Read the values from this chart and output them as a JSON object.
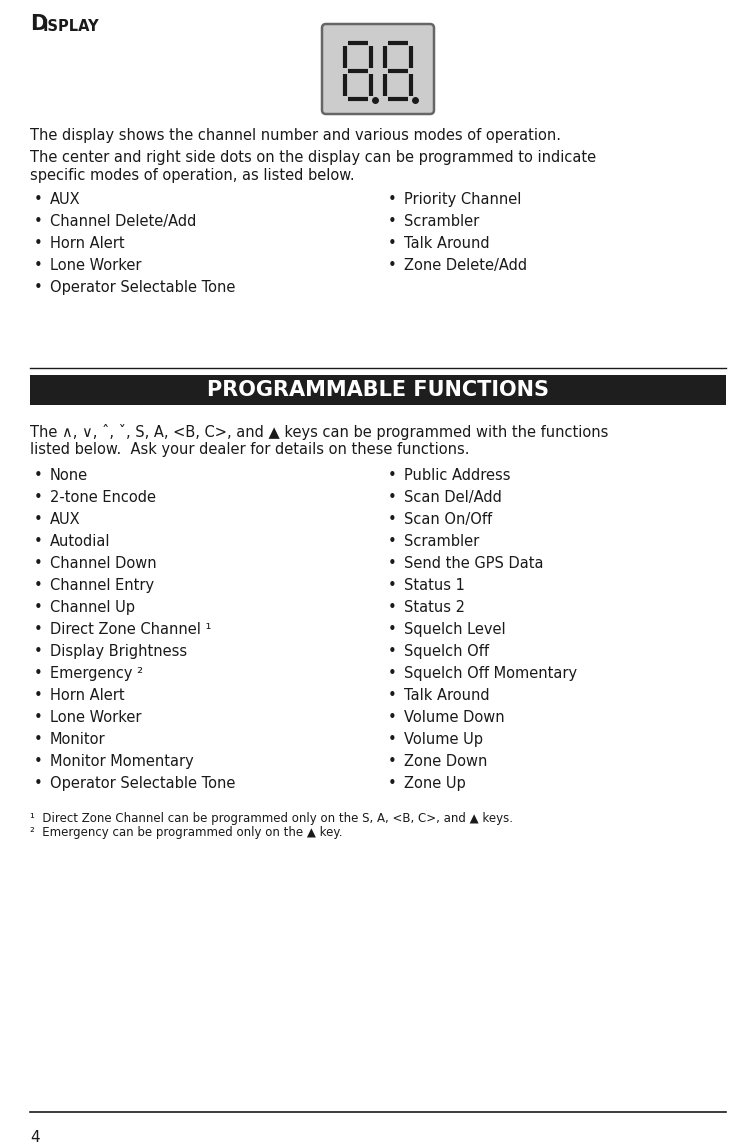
{
  "bg_color": "#ffffff",
  "text_color": "#1a1a1a",
  "display_section": {
    "col1_items": [
      "AUX",
      "Channel Delete/Add",
      "Horn Alert",
      "Lone Worker",
      "Operator Selectable Tone"
    ],
    "col2_items": [
      "Priority Channel",
      "Scrambler",
      "Talk Around",
      "Zone Delete/Add"
    ]
  },
  "prog_section": {
    "header": "PROGRAMMABLE FUNCTIONS",
    "col1_items": [
      "None",
      "2-tone Encode",
      "AUX",
      "Autodial",
      "Channel Down",
      "Channel Entry",
      "Channel Up",
      "Direct Zone Channel ¹",
      "Display Brightness",
      "Emergency ²",
      "Horn Alert",
      "Lone Worker",
      "Monitor",
      "Monitor Momentary",
      "Operator Selectable Tone"
    ],
    "col2_items": [
      "Public Address",
      "Scan Del/Add",
      "Scan On/Off",
      "Scrambler",
      "Send the GPS Data",
      "Status 1",
      "Status 2",
      "Squelch Level",
      "Squelch Off",
      "Squelch Off Momentary",
      "Talk Around",
      "Volume Down",
      "Volume Up",
      "Zone Down",
      "Zone Up"
    ]
  },
  "page_number": "4",
  "divider_color": "#1a1a1a",
  "header_bg_color": "#1e1e1e",
  "header_text_color": "#ffffff"
}
